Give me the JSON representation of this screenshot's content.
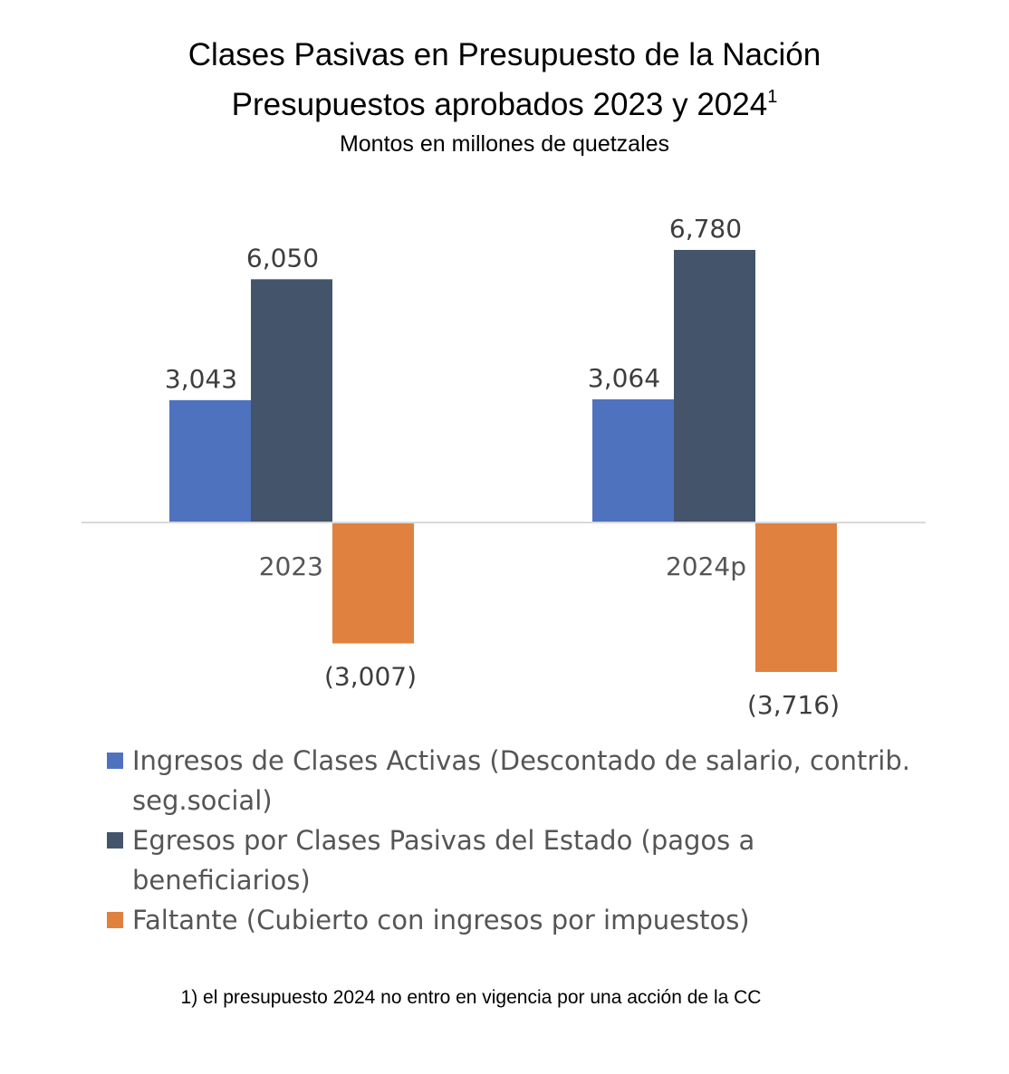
{
  "chart_data": {
    "type": "bar",
    "title_line1": "Clases Pasivas en Presupuesto de la Nación",
    "title_line2": "Presupuestos aprobados 2023 y 2024",
    "title_sup": "1",
    "subtitle": "Montos en millones de quetzales",
    "categories": [
      "2023",
      "2024p"
    ],
    "series": [
      {
        "name": "Ingresos de Clases Activas (Descontado de salario, contrib. seg.social)",
        "values": [
          3043,
          3064
        ],
        "labels": [
          "3,043",
          "3,064"
        ],
        "color": "#4f72be"
      },
      {
        "name": "Egresos por Clases Pasivas del Estado (pagos a beneficiarios)",
        "values": [
          6050,
          6780
        ],
        "labels": [
          "6,050",
          "6,780"
        ],
        "color": "#44546a"
      },
      {
        "name": "Faltante (Cubierto con ingresos por impuestos)",
        "values": [
          -3007,
          -3716
        ],
        "labels": [
          "(3,007)",
          "(3,716)"
        ],
        "color": "#e0813f"
      }
    ],
    "legend_position": "bottom",
    "grid": false
  },
  "footnote": "1) el presupuesto 2024 no entro en vigencia por una acción de la CC"
}
